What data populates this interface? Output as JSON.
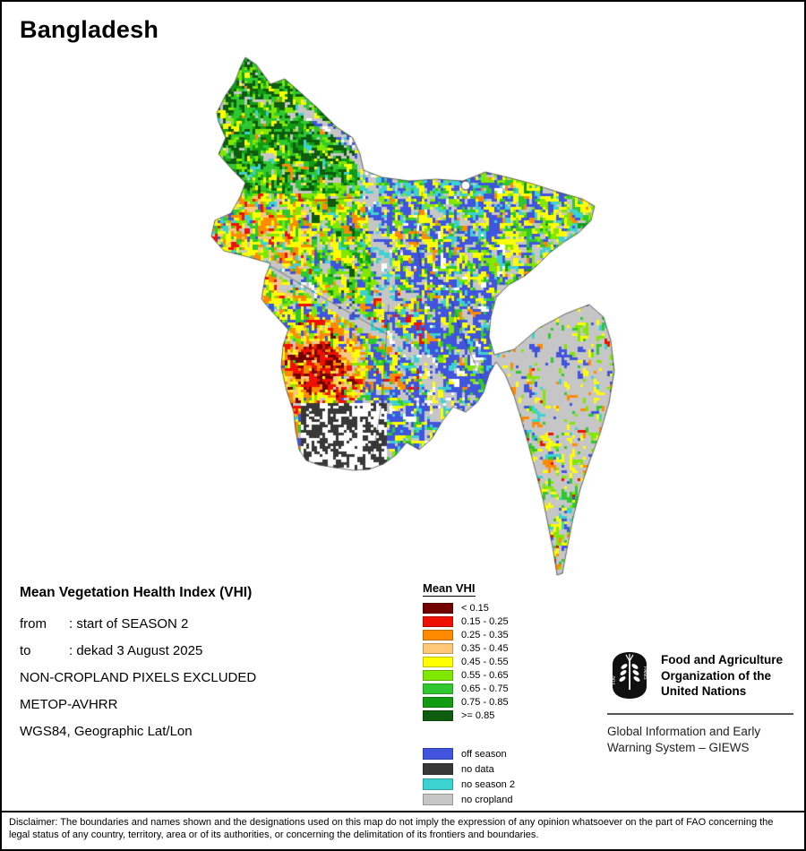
{
  "title": "Bangladesh",
  "map": {
    "name": "Mean Vegetation Health Index raster map of Bangladesh"
  },
  "info": {
    "heading": "Mean Vegetation Health Index (VHI)",
    "rows": [
      {
        "label": "from",
        "value": ": start of SEASON 2"
      },
      {
        "label": "to",
        "value": ": dekad 3 August 2025"
      },
      {
        "label": "",
        "value": "NON-CROPLAND PIXELS EXCLUDED"
      },
      {
        "label": "",
        "value": "METOP-AVHRR"
      },
      {
        "label": "",
        "value": "WGS84, Geographic Lat/Lon"
      }
    ]
  },
  "legend": {
    "title": "Mean VHI",
    "classes": [
      {
        "label": "< 0.15",
        "color": "#720000"
      },
      {
        "label": "0.15 - 0.25",
        "color": "#ee1000"
      },
      {
        "label": "0.25 - 0.35",
        "color": "#ff8a00"
      },
      {
        "label": "0.35 - 0.45",
        "color": "#ffc879"
      },
      {
        "label": "0.45 - 0.55",
        "color": "#ffff00"
      },
      {
        "label": "0.55 - 0.65",
        "color": "#80e800"
      },
      {
        "label": "0.65 - 0.75",
        "color": "#2fc82f"
      },
      {
        "label": "0.75 - 0.85",
        "color": "#119c11"
      },
      {
        "label": ">= 0.85",
        "color": "#0e5c0e"
      }
    ],
    "extra": [
      {
        "label": "off season",
        "color": "#4154de"
      },
      {
        "label": "no data",
        "color": "#383838"
      },
      {
        "label": "no season 2",
        "color": "#3dd2d2"
      },
      {
        "label": "no cropland",
        "color": "#c6c6c6"
      }
    ]
  },
  "branding": {
    "logo_motto_left": "FIAT",
    "logo_motto_right": "PANIS",
    "org_lines": [
      "Food and Agriculture",
      "Organization of the",
      "United Nations"
    ],
    "system_lines": [
      "Global Information and Early",
      "Warning System – GIEWS"
    ]
  },
  "disclaimer": "Disclaimer: The boundaries and names shown and the designations used on this map do not imply the expression of any opinion whatsoever on the part of FAO concerning the legal status of any country, territory, area or of its authorities, or concerning the delimitation of its frontiers and boundaries."
}
